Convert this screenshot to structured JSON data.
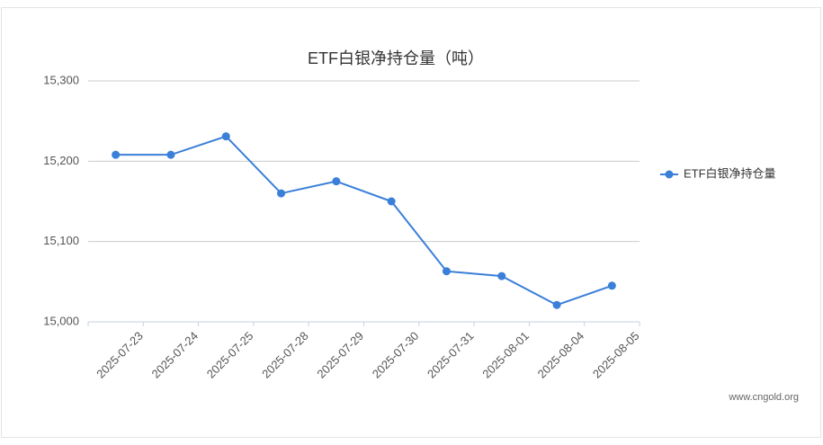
{
  "chart_data": {
    "type": "line",
    "title": "ETF白银净持仓量（吨）",
    "categories": [
      "2025-07-23",
      "2025-07-24",
      "2025-07-25",
      "2025-07-28",
      "2025-07-29",
      "2025-07-30",
      "2025-07-31",
      "2025-08-01",
      "2025-08-04",
      "2025-08-05"
    ],
    "series": [
      {
        "name": "ETF白银净持仓量",
        "color": "#3a7fd8",
        "values": [
          15208,
          15208,
          15231,
          15160,
          15175,
          15150,
          15063,
          15057,
          15021,
          15045
        ]
      }
    ],
    "ylim": [
      15000,
      15300
    ],
    "yticks": [
      {
        "value": 15000,
        "label": "15,000"
      },
      {
        "value": 15100,
        "label": "15,100"
      },
      {
        "value": 15200,
        "label": "15,200"
      },
      {
        "value": 15300,
        "label": "15,300"
      }
    ],
    "grid": true,
    "legend": "right",
    "watermark": "www.cngold.org"
  }
}
